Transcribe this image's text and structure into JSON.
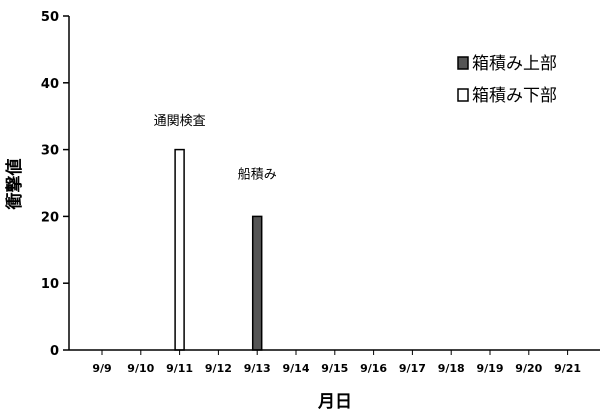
{
  "chart_data": {
    "type": "bar",
    "ylabel": "衝撃値",
    "xlabel": "月日",
    "ylim": [
      0,
      50
    ],
    "yticks": [
      0,
      10,
      20,
      30,
      40,
      50
    ],
    "grid": false,
    "legend_position": "top-right",
    "categories": [
      "9/9",
      "9/10",
      "9/11",
      "9/12",
      "9/13",
      "9/14",
      "9/15",
      "9/16",
      "9/17",
      "9/18",
      "9/19",
      "9/20",
      "9/21"
    ],
    "series": [
      {
        "name": "箱積み上部",
        "color": "#555555",
        "values": [
          0,
          0,
          0,
          0,
          20,
          0,
          0,
          0,
          0,
          0,
          0,
          0,
          0
        ]
      },
      {
        "name": "箱積み下部",
        "color": "#ffffff",
        "values": [
          0,
          0,
          30,
          0,
          0,
          0,
          0,
          0,
          0,
          0,
          0,
          0,
          0
        ]
      }
    ],
    "annotations": [
      {
        "text": "通関検査",
        "category": "9/11",
        "y": 34
      },
      {
        "text": "船積み",
        "category": "9/13",
        "y": 26
      }
    ]
  }
}
